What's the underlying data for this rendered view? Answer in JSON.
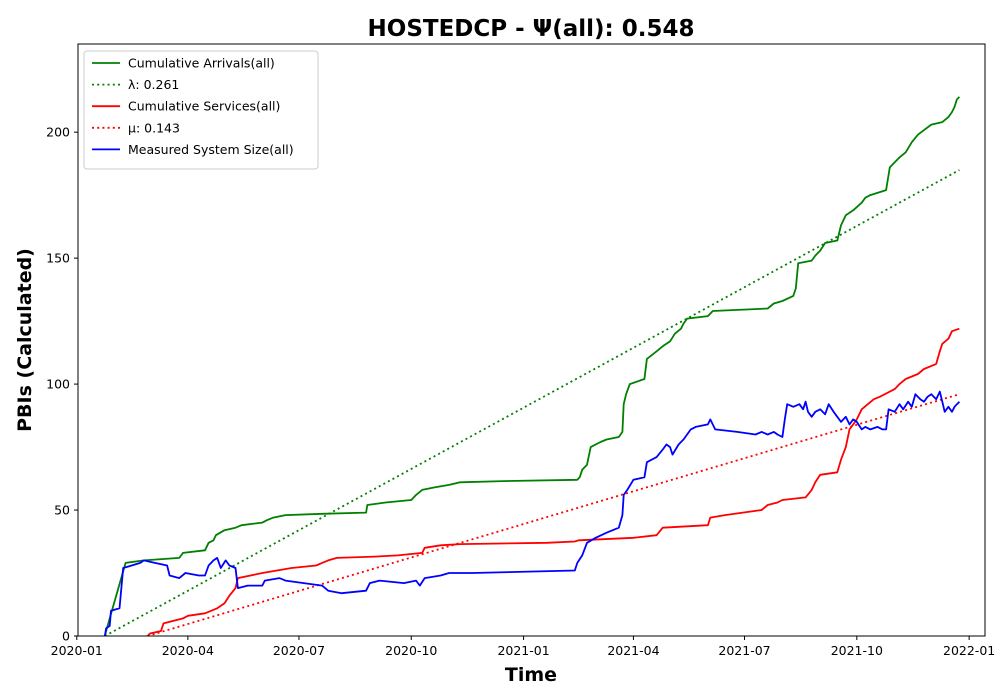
{
  "chart_data": {
    "type": "line",
    "title": "HOSTEDCP -  Ψ(all): 0.548",
    "xlabel": "Time",
    "ylabel": "PBIs (Calculated)",
    "xlim": [
      "2020-01-02",
      "2022-01-14"
    ],
    "ylim": [
      0,
      235
    ],
    "grid": false,
    "legend_position": "top-left",
    "x_ticks": [
      {
        "date": "2020-01-01",
        "label": "2020-01"
      },
      {
        "date": "2020-04-01",
        "label": "2020-04"
      },
      {
        "date": "2020-07-01",
        "label": "2020-07"
      },
      {
        "date": "2020-10-01",
        "label": "2020-10"
      },
      {
        "date": "2021-01-01",
        "label": "2021-01"
      },
      {
        "date": "2021-04-01",
        "label": "2021-04"
      },
      {
        "date": "2021-07-01",
        "label": "2021-07"
      },
      {
        "date": "2021-10-01",
        "label": "2021-10"
      },
      {
        "date": "2022-01-01",
        "label": "2022-01"
      }
    ],
    "y_ticks": [
      0,
      50,
      100,
      150,
      200
    ],
    "series": [
      {
        "name": "Cumulative Arrivals(all)",
        "color": "#008000",
        "style": "solid",
        "points": [
          [
            "2020-01-24",
            0
          ],
          [
            "2020-01-25",
            2
          ],
          [
            "2020-02-10",
            29
          ],
          [
            "2020-02-25",
            30
          ],
          [
            "2020-03-25",
            31
          ],
          [
            "2020-03-28",
            33
          ],
          [
            "2020-04-15",
            34
          ],
          [
            "2020-04-18",
            37
          ],
          [
            "2020-04-22",
            38
          ],
          [
            "2020-04-24",
            40
          ],
          [
            "2020-05-01",
            42
          ],
          [
            "2020-05-10",
            43
          ],
          [
            "2020-05-15",
            44
          ],
          [
            "2020-06-01",
            45
          ],
          [
            "2020-06-05",
            46
          ],
          [
            "2020-06-10",
            47
          ],
          [
            "2020-06-20",
            48
          ],
          [
            "2020-07-20",
            48.5
          ],
          [
            "2020-08-25",
            49
          ],
          [
            "2020-08-26",
            52
          ],
          [
            "2020-09-10",
            53
          ],
          [
            "2020-10-01",
            54
          ],
          [
            "2020-10-05",
            56
          ],
          [
            "2020-10-10",
            58
          ],
          [
            "2020-10-20",
            59
          ],
          [
            "2020-11-01",
            60
          ],
          [
            "2020-11-10",
            61
          ],
          [
            "2020-12-15",
            61.5
          ],
          [
            "2021-02-14",
            62
          ],
          [
            "2021-02-16",
            63
          ],
          [
            "2021-02-18",
            66
          ],
          [
            "2021-02-22",
            68
          ],
          [
            "2021-02-25",
            75
          ],
          [
            "2021-03-05",
            77
          ],
          [
            "2021-03-10",
            78
          ],
          [
            "2021-03-20",
            79
          ],
          [
            "2021-03-23",
            81
          ],
          [
            "2021-03-24",
            92
          ],
          [
            "2021-03-26",
            96
          ],
          [
            "2021-03-29",
            100
          ],
          [
            "2021-04-10",
            102
          ],
          [
            "2021-04-12",
            110
          ],
          [
            "2021-04-20",
            113
          ],
          [
            "2021-04-25",
            115
          ],
          [
            "2021-05-01",
            117
          ],
          [
            "2021-05-05",
            120
          ],
          [
            "2021-05-10",
            122
          ],
          [
            "2021-05-12",
            124
          ],
          [
            "2021-05-15",
            126
          ],
          [
            "2021-06-01",
            127
          ],
          [
            "2021-06-05",
            129
          ],
          [
            "2021-07-20",
            130
          ],
          [
            "2021-07-25",
            132
          ],
          [
            "2021-08-01",
            133
          ],
          [
            "2021-08-10",
            135
          ],
          [
            "2021-08-12",
            138
          ],
          [
            "2021-08-14",
            148
          ],
          [
            "2021-08-25",
            149
          ],
          [
            "2021-08-28",
            151
          ],
          [
            "2021-09-01",
            153
          ],
          [
            "2021-09-05",
            156
          ],
          [
            "2021-09-15",
            157
          ],
          [
            "2021-09-18",
            163
          ],
          [
            "2021-09-22",
            167
          ],
          [
            "2021-09-28",
            169
          ],
          [
            "2021-10-05",
            172
          ],
          [
            "2021-10-08",
            174
          ],
          [
            "2021-10-12",
            175
          ],
          [
            "2021-10-25",
            177
          ],
          [
            "2021-10-28",
            186
          ],
          [
            "2021-11-05",
            190
          ],
          [
            "2021-11-10",
            192
          ],
          [
            "2021-11-15",
            196
          ],
          [
            "2021-11-20",
            199
          ],
          [
            "2021-12-01",
            203
          ],
          [
            "2021-12-10",
            204
          ],
          [
            "2021-12-15",
            206
          ],
          [
            "2021-12-18",
            208
          ],
          [
            "2021-12-20",
            210
          ],
          [
            "2021-12-22",
            213
          ],
          [
            "2021-12-24",
            214
          ]
        ]
      },
      {
        "name": "λ: 0.261",
        "color": "#008000",
        "style": "dotted",
        "points": [
          [
            "2020-01-24",
            0
          ],
          [
            "2021-12-24",
            185
          ]
        ]
      },
      {
        "name": "Cumulative Services(all)",
        "color": "#ff0000",
        "style": "solid",
        "points": [
          [
            "2020-02-28",
            0
          ],
          [
            "2020-03-01",
            1
          ],
          [
            "2020-03-10",
            2
          ],
          [
            "2020-03-12",
            5
          ],
          [
            "2020-03-20",
            6
          ],
          [
            "2020-03-28",
            7
          ],
          [
            "2020-04-01",
            8
          ],
          [
            "2020-04-15",
            9
          ],
          [
            "2020-04-20",
            10
          ],
          [
            "2020-04-25",
            11
          ],
          [
            "2020-05-01",
            13
          ],
          [
            "2020-05-05",
            16
          ],
          [
            "2020-05-10",
            19
          ],
          [
            "2020-05-12",
            23
          ],
          [
            "2020-06-01",
            25
          ],
          [
            "2020-06-25",
            27
          ],
          [
            "2020-07-15",
            28
          ],
          [
            "2020-07-20",
            29
          ],
          [
            "2020-07-25",
            30
          ],
          [
            "2020-08-01",
            31
          ],
          [
            "2020-09-01",
            31.5
          ],
          [
            "2020-09-20",
            32
          ],
          [
            "2020-10-10",
            33
          ],
          [
            "2020-10-12",
            35
          ],
          [
            "2020-10-25",
            36
          ],
          [
            "2020-11-10",
            36.5
          ],
          [
            "2021-01-20",
            37
          ],
          [
            "2021-02-12",
            37.5
          ],
          [
            "2021-02-15",
            38
          ],
          [
            "2021-04-01",
            39
          ],
          [
            "2021-04-20",
            40
          ],
          [
            "2021-04-25",
            43
          ],
          [
            "2021-06-01",
            44
          ],
          [
            "2021-06-03",
            47
          ],
          [
            "2021-06-15",
            48
          ],
          [
            "2021-07-15",
            50
          ],
          [
            "2021-07-20",
            52
          ],
          [
            "2021-07-28",
            53
          ],
          [
            "2021-08-01",
            54
          ],
          [
            "2021-08-20",
            55
          ],
          [
            "2021-08-25",
            58
          ],
          [
            "2021-08-28",
            61
          ],
          [
            "2021-09-01",
            64
          ],
          [
            "2021-09-15",
            65
          ],
          [
            "2021-09-18",
            70
          ],
          [
            "2021-09-22",
            75
          ],
          [
            "2021-09-25",
            82
          ],
          [
            "2021-09-28",
            84
          ],
          [
            "2021-10-01",
            86
          ],
          [
            "2021-10-05",
            90
          ],
          [
            "2021-10-10",
            92
          ],
          [
            "2021-10-15",
            94
          ],
          [
            "2021-10-20",
            95
          ],
          [
            "2021-11-01",
            98
          ],
          [
            "2021-11-05",
            100
          ],
          [
            "2021-11-10",
            102
          ],
          [
            "2021-11-20",
            104
          ],
          [
            "2021-11-25",
            106
          ],
          [
            "2021-12-05",
            108
          ],
          [
            "2021-12-08",
            113
          ],
          [
            "2021-12-10",
            116
          ],
          [
            "2021-12-15",
            118
          ],
          [
            "2021-12-18",
            121
          ],
          [
            "2021-12-24",
            122
          ]
        ]
      },
      {
        "name": "μ: 0.143",
        "color": "#ff0000",
        "style": "dotted",
        "points": [
          [
            "2020-02-28",
            0
          ],
          [
            "2021-12-24",
            96
          ]
        ]
      },
      {
        "name": "Measured System Size(all)",
        "color": "#0000ff",
        "style": "solid",
        "points": [
          [
            "2020-01-24",
            0
          ],
          [
            "2020-01-25",
            3
          ],
          [
            "2020-01-28",
            4
          ],
          [
            "2020-01-29",
            10
          ],
          [
            "2020-02-05",
            11
          ],
          [
            "2020-02-08",
            27
          ],
          [
            "2020-02-15",
            28
          ],
          [
            "2020-02-22",
            29
          ],
          [
            "2020-02-25",
            30
          ],
          [
            "2020-03-05",
            29
          ],
          [
            "2020-03-15",
            28
          ],
          [
            "2020-03-17",
            24
          ],
          [
            "2020-03-25",
            23
          ],
          [
            "2020-03-30",
            25
          ],
          [
            "2020-04-10",
            24
          ],
          [
            "2020-04-15",
            24
          ],
          [
            "2020-04-18",
            28
          ],
          [
            "2020-04-22",
            30
          ],
          [
            "2020-04-25",
            31
          ],
          [
            "2020-04-28",
            27
          ],
          [
            "2020-05-02",
            30
          ],
          [
            "2020-05-05",
            28
          ],
          [
            "2020-05-10",
            27
          ],
          [
            "2020-05-12",
            19
          ],
          [
            "2020-05-20",
            20
          ],
          [
            "2020-06-01",
            20
          ],
          [
            "2020-06-03",
            22
          ],
          [
            "2020-06-15",
            23
          ],
          [
            "2020-06-20",
            22
          ],
          [
            "2020-07-05",
            21
          ],
          [
            "2020-07-20",
            20
          ],
          [
            "2020-07-25",
            18
          ],
          [
            "2020-08-05",
            17
          ],
          [
            "2020-08-25",
            18
          ],
          [
            "2020-08-28",
            21
          ],
          [
            "2020-09-05",
            22
          ],
          [
            "2020-09-25",
            21
          ],
          [
            "2020-10-05",
            22
          ],
          [
            "2020-10-08",
            20
          ],
          [
            "2020-10-12",
            23
          ],
          [
            "2020-10-25",
            24
          ],
          [
            "2020-11-01",
            25
          ],
          [
            "2020-11-20",
            25
          ],
          [
            "2021-02-12",
            26
          ],
          [
            "2021-02-14",
            29
          ],
          [
            "2021-02-18",
            32
          ],
          [
            "2021-02-22",
            37
          ],
          [
            "2021-03-01",
            39
          ],
          [
            "2021-03-10",
            41
          ],
          [
            "2021-03-15",
            42
          ],
          [
            "2021-03-20",
            43
          ],
          [
            "2021-03-23",
            48
          ],
          [
            "2021-03-24",
            56
          ],
          [
            "2021-03-27",
            58
          ],
          [
            "2021-04-01",
            62
          ],
          [
            "2021-04-10",
            63
          ],
          [
            "2021-04-12",
            69
          ],
          [
            "2021-04-20",
            71
          ],
          [
            "2021-04-25",
            74
          ],
          [
            "2021-04-28",
            76
          ],
          [
            "2021-05-01",
            75
          ],
          [
            "2021-05-03",
            72
          ],
          [
            "2021-05-08",
            76
          ],
          [
            "2021-05-12",
            78
          ],
          [
            "2021-05-15",
            80
          ],
          [
            "2021-05-18",
            82
          ],
          [
            "2021-05-22",
            83
          ],
          [
            "2021-06-01",
            84
          ],
          [
            "2021-06-03",
            86
          ],
          [
            "2021-06-07",
            82
          ],
          [
            "2021-06-25",
            81
          ],
          [
            "2021-07-10",
            80
          ],
          [
            "2021-07-15",
            81
          ],
          [
            "2021-07-20",
            80
          ],
          [
            "2021-07-25",
            81
          ],
          [
            "2021-07-28",
            80
          ],
          [
            "2021-08-01",
            79
          ],
          [
            "2021-08-03",
            86
          ],
          [
            "2021-08-05",
            92
          ],
          [
            "2021-08-10",
            91
          ],
          [
            "2021-08-15",
            92
          ],
          [
            "2021-08-18",
            90
          ],
          [
            "2021-08-20",
            93
          ],
          [
            "2021-08-22",
            89
          ],
          [
            "2021-08-25",
            87
          ],
          [
            "2021-08-28",
            89
          ],
          [
            "2021-09-01",
            90
          ],
          [
            "2021-09-05",
            88
          ],
          [
            "2021-09-08",
            92
          ],
          [
            "2021-09-12",
            89
          ],
          [
            "2021-09-15",
            87
          ],
          [
            "2021-09-18",
            85
          ],
          [
            "2021-09-22",
            87
          ],
          [
            "2021-09-25",
            84
          ],
          [
            "2021-09-28",
            86
          ],
          [
            "2021-10-01",
            85
          ],
          [
            "2021-10-05",
            82
          ],
          [
            "2021-10-08",
            83
          ],
          [
            "2021-10-12",
            82
          ],
          [
            "2021-10-18",
            83
          ],
          [
            "2021-10-22",
            82
          ],
          [
            "2021-10-25",
            82
          ],
          [
            "2021-10-27",
            90
          ],
          [
            "2021-11-01",
            89
          ],
          [
            "2021-11-05",
            92
          ],
          [
            "2021-11-08",
            90
          ],
          [
            "2021-11-12",
            93
          ],
          [
            "2021-11-15",
            91
          ],
          [
            "2021-11-18",
            96
          ],
          [
            "2021-11-22",
            94
          ],
          [
            "2021-11-25",
            93
          ],
          [
            "2021-11-28",
            95
          ],
          [
            "2021-12-01",
            96
          ],
          [
            "2021-12-05",
            94
          ],
          [
            "2021-12-08",
            97
          ],
          [
            "2021-12-10",
            93
          ],
          [
            "2021-12-12",
            89
          ],
          [
            "2021-12-15",
            91
          ],
          [
            "2021-12-18",
            89
          ],
          [
            "2021-12-20",
            91
          ],
          [
            "2021-12-22",
            92
          ],
          [
            "2021-12-24",
            93
          ]
        ]
      }
    ]
  }
}
